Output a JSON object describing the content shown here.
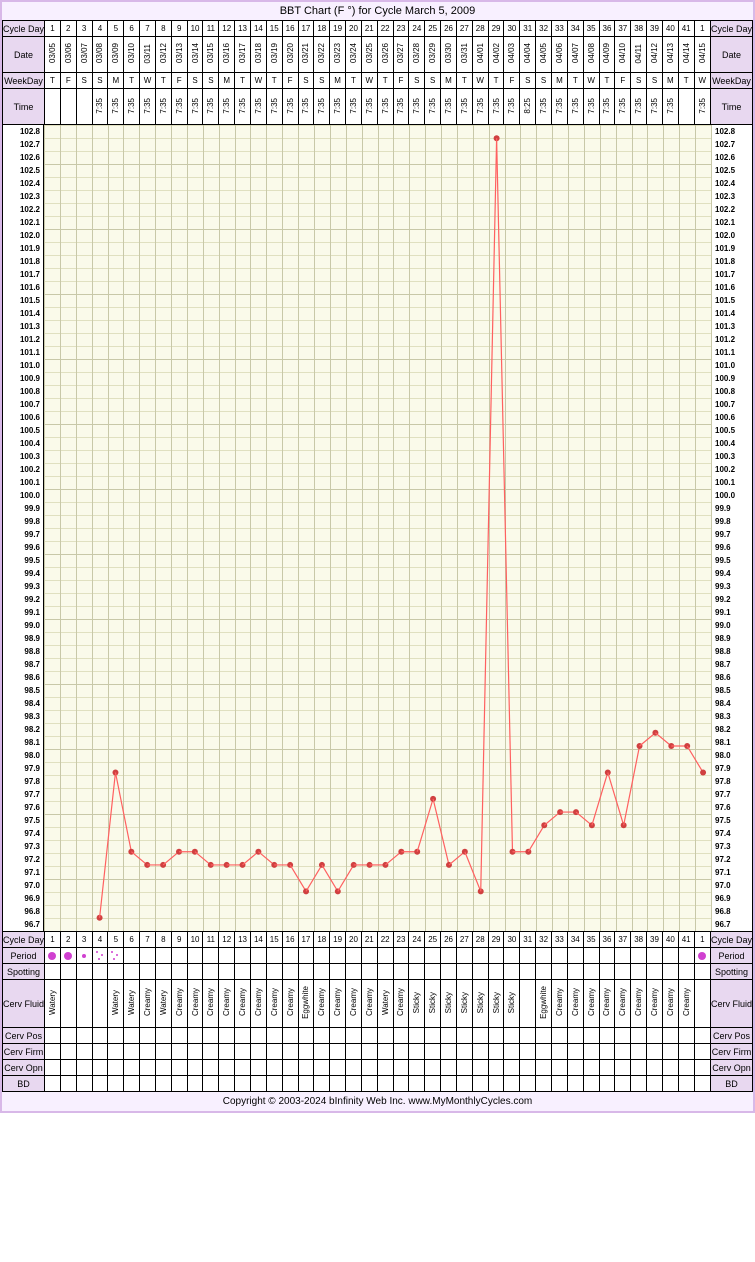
{
  "title": "BBT Chart (F °) for Cycle March 5, 2009",
  "copyright": "Copyright © 2003-2024 bInfinity Web Inc.     www.MyMonthlyCycles.com",
  "labels": {
    "cycleDay": "Cycle Day",
    "date": "Date",
    "weekDay": "WeekDay",
    "time": "Time",
    "period": "Period",
    "spotting": "Spotting",
    "cervFluid": "Cerv Fluid",
    "cervPos": "Cerv Pos",
    "cervFirm": "Cerv Firm",
    "cervOpn": "Cerv Opn",
    "bd": "BD"
  },
  "days": [
    {
      "cd": "1",
      "date": "03/05",
      "wd": "T",
      "time": "",
      "cf": "Watery",
      "period": "big"
    },
    {
      "cd": "2",
      "date": "03/06",
      "wd": "F",
      "time": "",
      "cf": "",
      "period": "big"
    },
    {
      "cd": "3",
      "date": "03/07",
      "wd": "S",
      "time": "",
      "cf": "",
      "period": "small"
    },
    {
      "cd": "4",
      "date": "03/08",
      "wd": "S",
      "time": "7:35",
      "cf": "",
      "period": "dots",
      "temp": 96.8
    },
    {
      "cd": "5",
      "date": "03/09",
      "wd": "M",
      "time": "7:35",
      "cf": "Watery",
      "period": "dots",
      "temp": 97.9
    },
    {
      "cd": "6",
      "date": "03/10",
      "wd": "T",
      "time": "7:35",
      "cf": "Watery",
      "temp": 97.3
    },
    {
      "cd": "7",
      "date": "03/11",
      "wd": "W",
      "time": "7:35",
      "cf": "Creamy",
      "temp": 97.2
    },
    {
      "cd": "8",
      "date": "03/12",
      "wd": "T",
      "time": "7:35",
      "cf": "Watery",
      "temp": 97.2
    },
    {
      "cd": "9",
      "date": "03/13",
      "wd": "F",
      "time": "7:35",
      "cf": "Creamy",
      "temp": 97.3
    },
    {
      "cd": "10",
      "date": "03/14",
      "wd": "S",
      "time": "7:35",
      "cf": "Creamy",
      "temp": 97.3
    },
    {
      "cd": "11",
      "date": "03/15",
      "wd": "S",
      "time": "7:35",
      "cf": "Creamy",
      "temp": 97.2
    },
    {
      "cd": "12",
      "date": "03/16",
      "wd": "M",
      "time": "7:35",
      "cf": "Creamy",
      "temp": 97.2
    },
    {
      "cd": "13",
      "date": "03/17",
      "wd": "T",
      "time": "7:35",
      "cf": "Creamy",
      "temp": 97.2
    },
    {
      "cd": "14",
      "date": "03/18",
      "wd": "W",
      "time": "7:35",
      "cf": "Creamy",
      "temp": 97.3
    },
    {
      "cd": "15",
      "date": "03/19",
      "wd": "T",
      "time": "7:35",
      "cf": "Creamy",
      "temp": 97.2
    },
    {
      "cd": "16",
      "date": "03/20",
      "wd": "F",
      "time": "7:35",
      "cf": "Creamy",
      "temp": 97.2
    },
    {
      "cd": "17",
      "date": "03/21",
      "wd": "S",
      "time": "7:35",
      "cf": "Eggwhite",
      "temp": 97.0
    },
    {
      "cd": "18",
      "date": "03/22",
      "wd": "S",
      "time": "7:35",
      "cf": "Creamy",
      "temp": 97.2
    },
    {
      "cd": "19",
      "date": "03/23",
      "wd": "M",
      "time": "7:35",
      "cf": "Creamy",
      "temp": 97.0
    },
    {
      "cd": "20",
      "date": "03/24",
      "wd": "T",
      "time": "7:35",
      "cf": "Creamy",
      "temp": 97.2
    },
    {
      "cd": "21",
      "date": "03/25",
      "wd": "W",
      "time": "7:35",
      "cf": "Creamy",
      "temp": 97.2
    },
    {
      "cd": "22",
      "date": "03/26",
      "wd": "T",
      "time": "7:35",
      "cf": "Watery",
      "temp": 97.2
    },
    {
      "cd": "23",
      "date": "03/27",
      "wd": "F",
      "time": "7:35",
      "cf": "Creamy",
      "temp": 97.3
    },
    {
      "cd": "24",
      "date": "03/28",
      "wd": "S",
      "time": "7:35",
      "cf": "Sticky",
      "temp": 97.3
    },
    {
      "cd": "25",
      "date": "03/29",
      "wd": "S",
      "time": "7:35",
      "cf": "Sticky",
      "temp": 97.7
    },
    {
      "cd": "26",
      "date": "03/30",
      "wd": "M",
      "time": "7:35",
      "cf": "Sticky",
      "temp": 97.2
    },
    {
      "cd": "27",
      "date": "03/31",
      "wd": "T",
      "time": "7:35",
      "cf": "Sticky",
      "temp": 97.3
    },
    {
      "cd": "28",
      "date": "04/01",
      "wd": "W",
      "time": "7:35",
      "cf": "Sticky",
      "temp": 97.0
    },
    {
      "cd": "29",
      "date": "04/02",
      "wd": "T",
      "time": "7:35",
      "cf": "Sticky",
      "temp": 102.7
    },
    {
      "cd": "30",
      "date": "04/03",
      "wd": "F",
      "time": "7:35",
      "cf": "Sticky",
      "temp": 97.3
    },
    {
      "cd": "31",
      "date": "04/04",
      "wd": "S",
      "time": "8:25",
      "cf": "",
      "temp": 97.3
    },
    {
      "cd": "32",
      "date": "04/05",
      "wd": "S",
      "time": "7:35",
      "cf": "Eggwhite",
      "temp": 97.5
    },
    {
      "cd": "33",
      "date": "04/06",
      "wd": "M",
      "time": "7:35",
      "cf": "Creamy",
      "temp": 97.6
    },
    {
      "cd": "34",
      "date": "04/07",
      "wd": "T",
      "time": "7:35",
      "cf": "Creamy",
      "temp": 97.6
    },
    {
      "cd": "35",
      "date": "04/08",
      "wd": "W",
      "time": "7:35",
      "cf": "Creamy",
      "temp": 97.5
    },
    {
      "cd": "36",
      "date": "04/09",
      "wd": "T",
      "time": "7:35",
      "cf": "Creamy",
      "temp": 97.9
    },
    {
      "cd": "37",
      "date": "04/10",
      "wd": "F",
      "time": "7:35",
      "cf": "Creamy",
      "temp": 97.5
    },
    {
      "cd": "38",
      "date": "04/11",
      "wd": "S",
      "time": "7:35",
      "cf": "Creamy",
      "temp": 98.1
    },
    {
      "cd": "39",
      "date": "04/12",
      "wd": "S",
      "time": "7:35",
      "cf": "Creamy",
      "temp": 98.2
    },
    {
      "cd": "40",
      "date": "04/13",
      "wd": "M",
      "time": "7:35",
      "cf": "Creamy",
      "temp": 98.1
    },
    {
      "cd": "41",
      "date": "04/14",
      "wd": "T",
      "time": "",
      "cf": "Creamy",
      "temp": 98.1
    },
    {
      "cd": "1",
      "date": "04/15",
      "wd": "W",
      "time": "7:35",
      "cf": "",
      "period": "big",
      "temp": 97.9
    }
  ],
  "ylabels": [
    "102.8",
    "102.7",
    "102.6",
    "102.5",
    "102.4",
    "102.3",
    "102.2",
    "102.1",
    "102.0",
    "101.9",
    "101.8",
    "101.7",
    "101.6",
    "101.5",
    "101.4",
    "101.3",
    "101.2",
    "101.1",
    "101.0",
    "100.9",
    "100.8",
    "100.7",
    "100.6",
    "100.5",
    "100.4",
    "100.3",
    "100.2",
    "100.1",
    "100.0",
    "99.9",
    "99.8",
    "99.7",
    "99.6",
    "99.5",
    "99.4",
    "99.3",
    "99.2",
    "99.1",
    "99.0",
    "98.9",
    "98.8",
    "98.7",
    "98.6",
    "98.5",
    "98.4",
    "98.3",
    "98.2",
    "98.1",
    "98.0",
    "97.9",
    "97.8",
    "97.7",
    "97.6",
    "97.5",
    "97.4",
    "97.3",
    "97.2",
    "97.1",
    "97.0",
    "96.9",
    "96.8",
    "96.7"
  ],
  "chart": {
    "ymin": 96.7,
    "ymax": 102.8,
    "line_color": "#ff6060",
    "point_color": "#d04040",
    "point_radius": 3,
    "line_width": 1.2,
    "bg_color": "#fafaea",
    "grid_major": "#c8c8a8",
    "grid_minor": "#e0e0c0",
    "period_color": "#d040d0"
  }
}
